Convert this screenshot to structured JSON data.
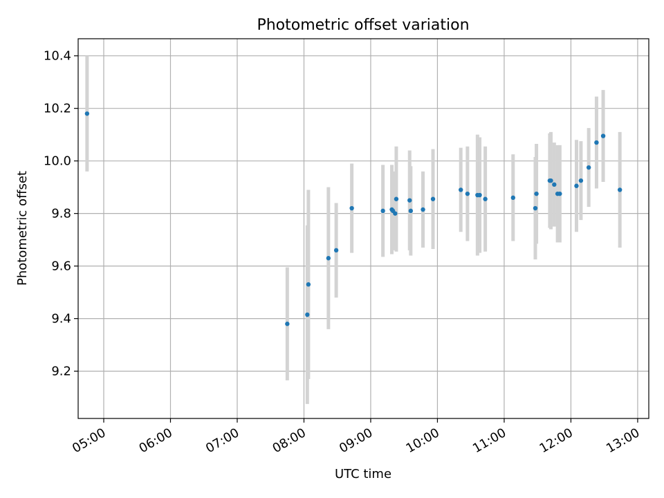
{
  "chart_data": {
    "type": "scatter",
    "title": "Photometric offset variation",
    "xlabel": "UTC time",
    "ylabel": "Photometric offset",
    "x_ticks": [
      "05:00",
      "06:00",
      "07:00",
      "08:00",
      "09:00",
      "10:00",
      "11:00",
      "12:00",
      "13:00"
    ],
    "y_ticks": [
      "9.2",
      "9.4",
      "9.6",
      "9.8",
      "10.0",
      "10.2",
      "10.4"
    ],
    "xlim": [
      "04:37",
      "13:10"
    ],
    "ylim": [
      9.02,
      10.465
    ],
    "grid": true,
    "colors": {
      "marker": "#1f77b4",
      "errorbar": "#d3d3d3",
      "grid": "#b0b0b0"
    },
    "points": [
      {
        "t": "04:45",
        "y": 10.18,
        "err": 0.22
      },
      {
        "t": "07:45",
        "y": 9.38,
        "err": 0.215
      },
      {
        "t": "08:03",
        "y": 9.415,
        "err": 0.34
      },
      {
        "t": "08:04",
        "y": 9.53,
        "err": 0.36
      },
      {
        "t": "08:22",
        "y": 9.63,
        "err": 0.27
      },
      {
        "t": "08:29",
        "y": 9.66,
        "err": 0.18
      },
      {
        "t": "08:43",
        "y": 9.82,
        "err": 0.17
      },
      {
        "t": "09:11",
        "y": 9.81,
        "err": 0.175
      },
      {
        "t": "09:19",
        "y": 9.815,
        "err": 0.17
      },
      {
        "t": "09:20",
        "y": 9.81,
        "err": 0.15
      },
      {
        "t": "09:22",
        "y": 9.8,
        "err": 0.13
      },
      {
        "t": "09:23",
        "y": 9.855,
        "err": 0.2
      },
      {
        "t": "09:35",
        "y": 9.85,
        "err": 0.19
      },
      {
        "t": "09:36",
        "y": 9.81,
        "err": 0.17
      },
      {
        "t": "09:47",
        "y": 9.815,
        "err": 0.145
      },
      {
        "t": "09:56",
        "y": 9.855,
        "err": 0.19
      },
      {
        "t": "10:21",
        "y": 9.89,
        "err": 0.16
      },
      {
        "t": "10:27",
        "y": 9.875,
        "err": 0.18
      },
      {
        "t": "10:36",
        "y": 9.87,
        "err": 0.23
      },
      {
        "t": "10:38",
        "y": 9.87,
        "err": 0.22
      },
      {
        "t": "10:43",
        "y": 9.855,
        "err": 0.2
      },
      {
        "t": "11:08",
        "y": 9.86,
        "err": 0.165
      },
      {
        "t": "11:28",
        "y": 9.82,
        "err": 0.195
      },
      {
        "t": "11:29",
        "y": 9.875,
        "err": 0.19
      },
      {
        "t": "11:41",
        "y": 9.925,
        "err": 0.18
      },
      {
        "t": "11:42",
        "y": 9.925,
        "err": 0.185
      },
      {
        "t": "11:45",
        "y": 9.91,
        "err": 0.16
      },
      {
        "t": "11:48",
        "y": 9.875,
        "err": 0.185
      },
      {
        "t": "11:50",
        "y": 9.875,
        "err": 0.185
      },
      {
        "t": "12:05",
        "y": 9.905,
        "err": 0.175
      },
      {
        "t": "12:09",
        "y": 9.925,
        "err": 0.15
      },
      {
        "t": "12:16",
        "y": 9.975,
        "err": 0.15
      },
      {
        "t": "12:23",
        "y": 10.07,
        "err": 0.175
      },
      {
        "t": "12:29",
        "y": 10.095,
        "err": 0.175
      },
      {
        "t": "12:44",
        "y": 9.89,
        "err": 0.22
      }
    ]
  }
}
